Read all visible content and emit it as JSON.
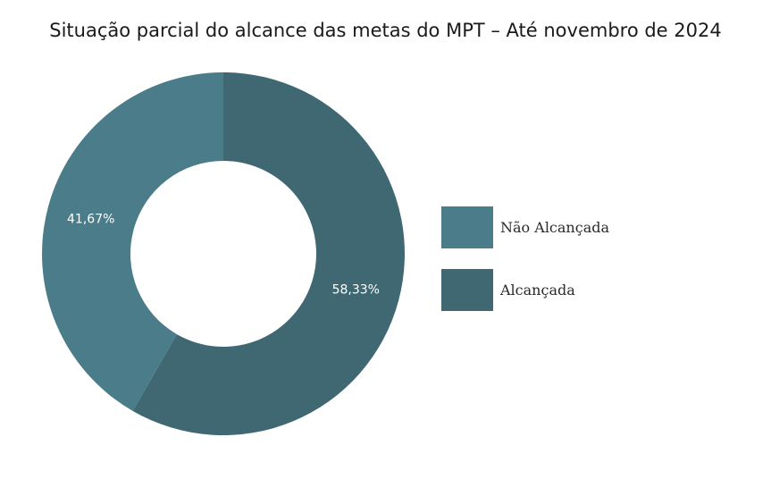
{
  "chart_data": {
    "type": "pie",
    "title": "Situação parcial do alcance das metas do MPT – Até novembro de 2024",
    "donut": true,
    "slices": [
      {
        "label": "Alcançada",
        "value": 58.33,
        "display": "58,33%",
        "color": "#3f6873"
      },
      {
        "label": "Não Alcançada",
        "value": 41.67,
        "display": "41,67%",
        "color": "#4b7c89"
      }
    ],
    "legend": {
      "position": "right",
      "items": [
        {
          "label": "Não Alcançada",
          "color": "#4b7c89"
        },
        {
          "label": "Alcançada",
          "color": "#3f6873"
        }
      ]
    }
  }
}
